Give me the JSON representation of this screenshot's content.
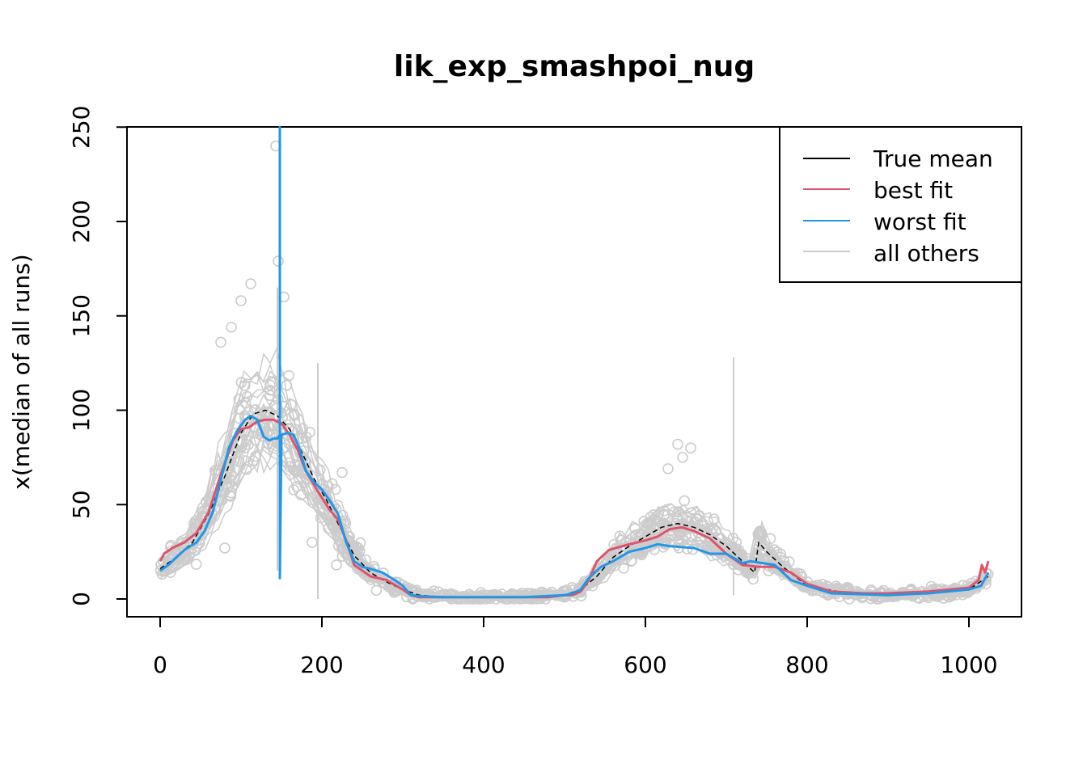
{
  "chart_data": {
    "type": "line",
    "title": "lik_exp_smashpoi_nug",
    "xlabel": "",
    "ylabel": "x(median of all runs)",
    "xlim": [
      -20,
      1045
    ],
    "ylim": [
      -10,
      250
    ],
    "xticks": [
      0,
      200,
      400,
      600,
      800,
      1000
    ],
    "yticks": [
      0,
      50,
      100,
      150,
      200,
      250
    ],
    "grid": false,
    "legend_position": "top-right",
    "colors": {
      "true_mean": "#000000",
      "best_fit": "#DF536B",
      "worst_fit": "#2297E6",
      "all_others": "#CCCCCC"
    },
    "series": [
      {
        "name": "True mean",
        "style": "dashed",
        "x": [
          0,
          20,
          40,
          60,
          80,
          100,
          115,
          130,
          145,
          160,
          175,
          190,
          205,
          220,
          240,
          260,
          280,
          300,
          320,
          350,
          400,
          450,
          500,
          520,
          540,
          560,
          580,
          600,
          620,
          640,
          660,
          680,
          700,
          720,
          735,
          740,
          750,
          770,
          800,
          850,
          900,
          950,
          1000,
          1024
        ],
        "y": [
          16,
          22,
          30,
          45,
          65,
          88,
          98,
          100,
          97,
          90,
          78,
          64,
          53,
          40,
          23,
          14,
          9,
          5,
          2,
          1,
          1,
          1,
          2,
          5,
          12,
          22,
          28,
          33,
          38,
          40,
          38,
          34,
          28,
          20,
          14,
          30,
          25,
          17,
          7,
          3,
          2,
          3,
          5,
          12
        ]
      },
      {
        "name": "best fit",
        "style": "solid",
        "x": [
          0,
          5,
          15,
          30,
          45,
          60,
          75,
          90,
          100,
          110,
          120,
          130,
          140,
          150,
          160,
          170,
          180,
          195,
          210,
          220,
          230,
          240,
          260,
          280,
          300,
          310,
          320,
          350,
          400,
          450,
          480,
          500,
          510,
          520,
          530,
          540,
          555,
          580,
          600,
          615,
          630,
          645,
          660,
          680,
          700,
          720,
          740,
          760,
          780,
          800,
          830,
          870,
          900,
          950,
          1000,
          1012,
          1016,
          1020,
          1024
        ],
        "y": [
          20,
          24,
          27,
          30,
          35,
          46,
          66,
          84,
          90,
          91,
          94,
          95,
          95,
          93,
          87,
          79,
          68,
          57,
          47,
          42,
          31,
          18,
          12,
          10,
          5,
          2,
          1,
          1,
          1,
          1,
          1,
          2,
          2,
          4,
          10,
          20,
          26,
          29,
          31,
          33,
          37,
          38,
          36,
          32,
          24,
          18,
          17,
          17,
          14,
          8,
          4,
          3,
          3,
          4,
          6,
          10,
          18,
          14,
          20
        ]
      },
      {
        "name": "worst fit",
        "style": "solid",
        "x": [
          0,
          10,
          20,
          30,
          45,
          55,
          65,
          75,
          85,
          95,
          105,
          112,
          120,
          128,
          135,
          140,
          145,
          148,
          148,
          148,
          150,
          158,
          165,
          172,
          180,
          190,
          200,
          210,
          220,
          230,
          240,
          250,
          260,
          275,
          290,
          300,
          310,
          320,
          350,
          400,
          450,
          500,
          510,
          520,
          530,
          545,
          560,
          580,
          600,
          615,
          630,
          660,
          680,
          700,
          720,
          730,
          760,
          780,
          800,
          830,
          870,
          900,
          950,
          1000,
          1015,
          1024
        ],
        "y": [
          15,
          18,
          22,
          26,
          30,
          36,
          46,
          63,
          80,
          89,
          95,
          97,
          95,
          86,
          84,
          85,
          85,
          87,
          250,
          11,
          87,
          88,
          87,
          80,
          68,
          62,
          58,
          52,
          45,
          30,
          20,
          17,
          16,
          14,
          10,
          7,
          2,
          1.5,
          1,
          1,
          1,
          2,
          3,
          5,
          11,
          17,
          20,
          25,
          27,
          29,
          28,
          27,
          24,
          24,
          19,
          20,
          18,
          10,
          7,
          3,
          2.5,
          2,
          3,
          5,
          7,
          14
        ]
      }
    ],
    "others_note": "all others"
  },
  "legend": {
    "items": [
      "True mean",
      "best fit",
      "worst fit",
      "all others"
    ]
  }
}
